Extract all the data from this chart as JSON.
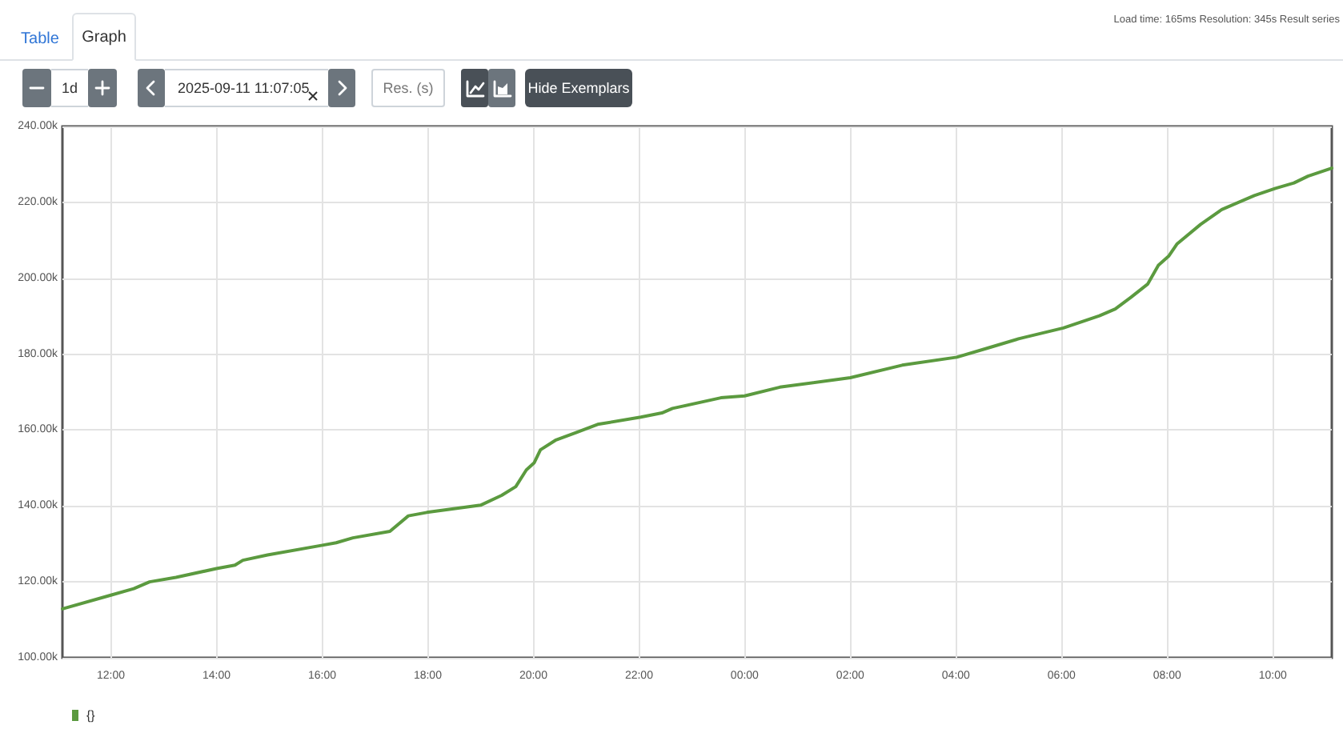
{
  "chart_data": {
    "type": "line",
    "annotations": [
      "Table",
      "Graph",
      "Load time: 165ms   Resolution: 345s   Result series",
      "1d",
      "2025-09-11 11:07:05",
      "Res. (s)",
      "Hide Exemplars"
    ],
    "x": [
      "2025-09-10T11:05",
      "2025-09-10T12:00",
      "2025-09-10T12:26",
      "2025-09-10T12:44",
      "2025-09-10T13:14",
      "2025-09-10T14:00",
      "2025-09-10T14:21",
      "2025-09-10T14:30",
      "2025-09-10T14:58",
      "2025-09-10T15:59",
      "2025-09-10T16:16",
      "2025-09-10T16:35",
      "2025-09-10T17:17",
      "2025-09-10T17:38",
      "2025-09-10T17:59",
      "2025-09-10T19:00",
      "2025-09-10T19:24",
      "2025-09-10T19:40",
      "2025-09-10T19:52",
      "2025-09-10T20:01",
      "2025-09-10T20:08",
      "2025-09-10T20:25",
      "2025-09-10T20:49",
      "2025-09-10T21:13",
      "2025-09-10T22:02",
      "2025-09-10T22:26",
      "2025-09-10T22:38",
      "2025-09-10T23:33",
      "2025-09-11T00:00",
      "2025-09-11T00:40",
      "2025-09-11T02:00",
      "2025-09-11T02:59",
      "2025-09-11T04:01",
      "2025-09-11T04:36",
      "2025-09-11T05:12",
      "2025-09-11T06:02",
      "2025-09-11T06:43",
      "2025-09-11T07:01",
      "2025-09-11T07:19",
      "2025-09-11T07:38",
      "2025-09-11T07:50",
      "2025-09-11T08:02",
      "2025-09-11T08:11",
      "2025-09-11T08:38",
      "2025-09-11T09:02",
      "2025-09-11T09:39",
      "2025-09-11T10:03",
      "2025-09-11T10:24",
      "2025-09-11T10:40",
      "2025-09-11T11:07"
    ],
    "series": [
      {
        "name": "{}",
        "color": "#5b9a3f",
        "values": [
          112900,
          116500,
          118200,
          120000,
          121200,
          123500,
          124400,
          125700,
          127100,
          129600,
          130300,
          131600,
          133300,
          137400,
          138300,
          140200,
          142800,
          145100,
          149500,
          151400,
          154800,
          157300,
          159400,
          161500,
          163400,
          164500,
          165700,
          168500,
          169000,
          171300,
          173800,
          177100,
          179200,
          181600,
          184100,
          186900,
          190100,
          191900,
          195000,
          198500,
          203400,
          205900,
          209000,
          214200,
          218100,
          221800,
          223700,
          225100,
          226900,
          229000
        ]
      }
    ],
    "xlim": [
      "2025-09-10T11:05",
      "2025-09-11T11:07"
    ],
    "xticks": [
      {
        "value": "2025-09-10T12:00",
        "label": "12:00"
      },
      {
        "value": "2025-09-10T14:00",
        "label": "14:00"
      },
      {
        "value": "2025-09-10T16:00",
        "label": "16:00"
      },
      {
        "value": "2025-09-10T18:00",
        "label": "18:00"
      },
      {
        "value": "2025-09-10T20:00",
        "label": "20:00"
      },
      {
        "value": "2025-09-10T22:00",
        "label": "22:00"
      },
      {
        "value": "2025-09-11T00:00",
        "label": "00:00"
      },
      {
        "value": "2025-09-11T02:00",
        "label": "02:00"
      },
      {
        "value": "2025-09-11T04:00",
        "label": "04:00"
      },
      {
        "value": "2025-09-11T06:00",
        "label": "06:00"
      },
      {
        "value": "2025-09-11T08:00",
        "label": "08:00"
      },
      {
        "value": "2025-09-11T10:00",
        "label": "10:00"
      }
    ],
    "ylim": [
      100000,
      240000
    ],
    "yticks": [
      {
        "value": 100000,
        "label": "100.00k"
      },
      {
        "value": 120000,
        "label": "120.00k"
      },
      {
        "value": 140000,
        "label": "140.00k"
      },
      {
        "value": 160000,
        "label": "160.00k"
      },
      {
        "value": 180000,
        "label": "180.00k"
      },
      {
        "value": 200000,
        "label": "200.00k"
      },
      {
        "value": 220000,
        "label": "220.00k"
      },
      {
        "value": 240000,
        "label": "240.00k"
      }
    ],
    "grid": true,
    "legend": "bottom left",
    "marker": "none",
    "line_style": "solid"
  }
}
